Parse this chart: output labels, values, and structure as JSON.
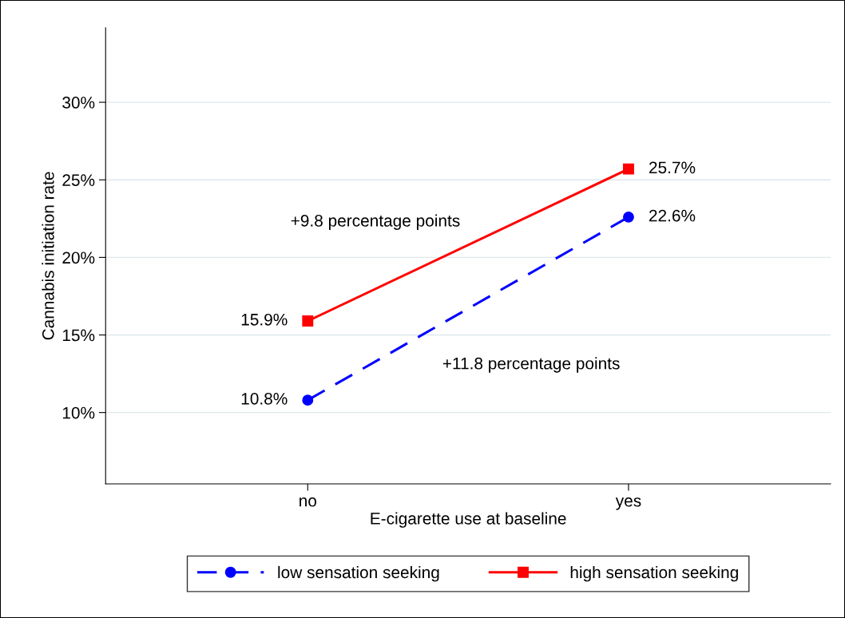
{
  "chart_data": {
    "type": "line",
    "xlabel": "E-cigarette use at baseline",
    "ylabel": "Cannabis initiation rate",
    "categories": [
      "no",
      "yes"
    ],
    "series": [
      {
        "name": "low sensation seeking",
        "color": "#0000ff",
        "values": [
          10.8,
          22.6
        ],
        "marker": "circle",
        "line_style": "dashed",
        "value_labels": [
          "10.8%",
          "22.6%"
        ]
      },
      {
        "name": "high sensation seeking",
        "color": "#ff0000",
        "values": [
          15.9,
          25.7
        ],
        "marker": "square",
        "line_style": "solid",
        "value_labels": [
          "15.9%",
          "25.7%"
        ]
      }
    ],
    "ylim": [
      5.4,
      34.8
    ],
    "yticks": [
      {
        "value": 10,
        "label": "10%"
      },
      {
        "value": 15,
        "label": "15%"
      },
      {
        "value": 20,
        "label": "20%"
      },
      {
        "value": 25,
        "label": "25%"
      },
      {
        "value": 30,
        "label": "30%"
      }
    ],
    "grid": "y",
    "legend": "bottom",
    "annotations": [
      "+9.8 percentage points",
      "+11.8 percentage points"
    ]
  }
}
